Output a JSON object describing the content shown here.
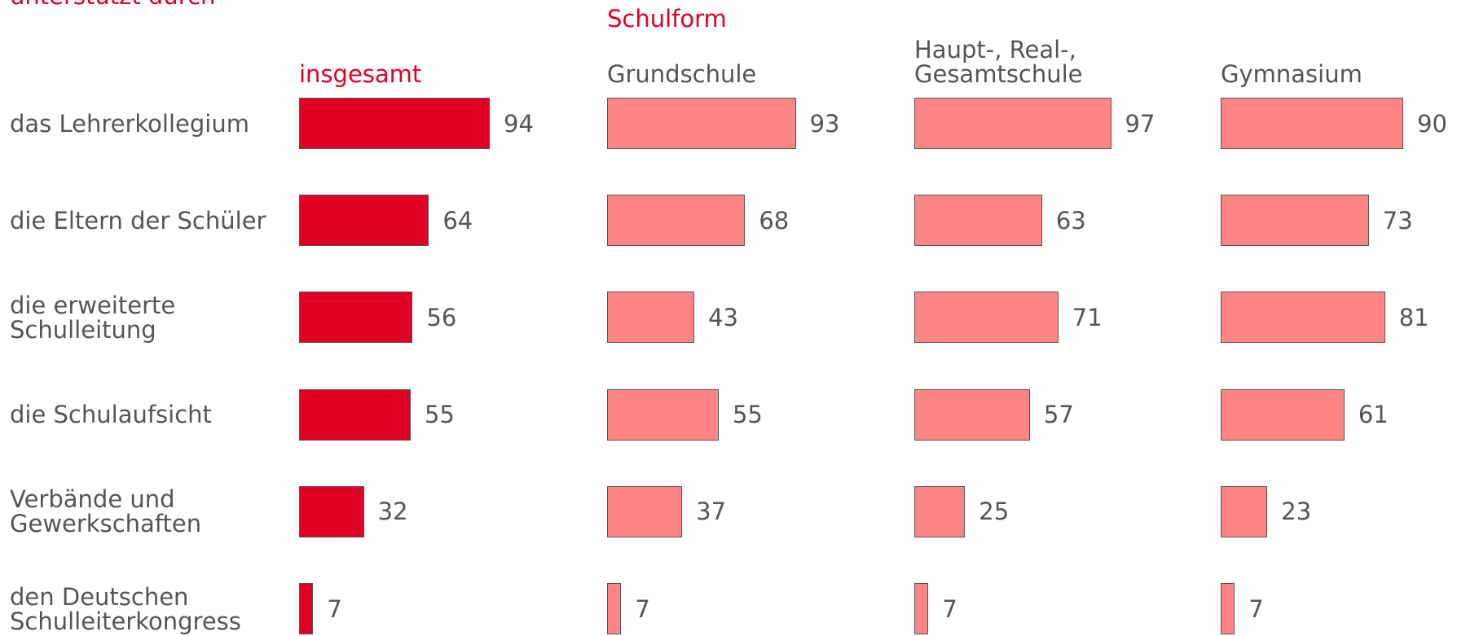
{
  "chart_data": {
    "type": "bar",
    "title": "unterstützt durch",
    "group_title": "Schulform",
    "categories": [
      "das Lehrerkollegium",
      "die Eltern der Schüler",
      "die erweiterte\nSchulleitung",
      "die Schulaufsicht",
      "Verbände und\nGewerkschaften",
      "den Deutschen\nSchulleiterkongress"
    ],
    "series": [
      {
        "name": "insgesamt",
        "color": "#e00024",
        "values": [
          94,
          64,
          56,
          55,
          32,
          7
        ]
      },
      {
        "name": "Grundschule",
        "color": "#ff8585",
        "values": [
          93,
          68,
          43,
          55,
          37,
          7
        ]
      },
      {
        "name": "Haupt-, Real-,\nGesamtschule",
        "color": "#ff8585",
        "values": [
          97,
          63,
          71,
          57,
          25,
          7
        ]
      },
      {
        "name": "Gymnasium",
        "color": "#ff8585",
        "values": [
          90,
          73,
          81,
          61,
          23,
          7
        ]
      }
    ]
  }
}
